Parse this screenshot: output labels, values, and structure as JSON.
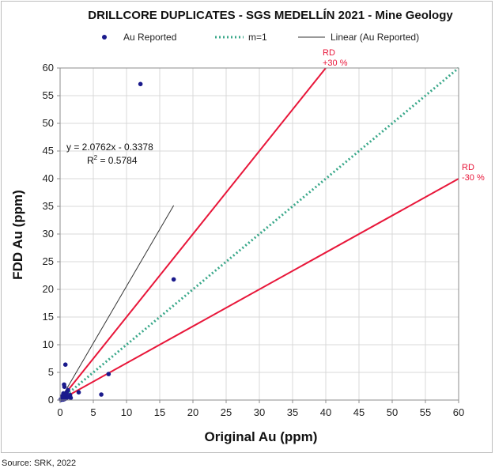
{
  "chart_data": {
    "type": "scatter",
    "title": "DRILLCORE DUPLICATES - SGS MEDELLÍN 2021 - Mine Geology",
    "xlabel": "Original Au (ppm)",
    "ylabel": "FDD  Au (ppm)",
    "xlim": [
      0,
      60
    ],
    "ylim": [
      0,
      60
    ],
    "x_ticks": [
      0,
      5,
      10,
      15,
      20,
      25,
      30,
      35,
      40,
      45,
      50,
      55,
      60
    ],
    "y_ticks": [
      0,
      5,
      10,
      15,
      20,
      25,
      30,
      35,
      40,
      45,
      50,
      55,
      60
    ],
    "grid": true,
    "legend_position": "top",
    "legend": [
      {
        "label": "Au Reported",
        "style": "marker",
        "color": "#1a1a8c"
      },
      {
        "label": "m=1",
        "style": "dotted",
        "color": "#3aa88a"
      },
      {
        "label": "Linear (Au Reported)",
        "style": "solid",
        "color": "#333333"
      }
    ],
    "series": [
      {
        "name": "Au Reported",
        "color": "#1a1a8c",
        "points": [
          [
            0.1,
            0.1
          ],
          [
            0.15,
            0.2
          ],
          [
            0.2,
            0.05
          ],
          [
            0.25,
            0.3
          ],
          [
            0.3,
            0.15
          ],
          [
            0.35,
            0.4
          ],
          [
            0.4,
            0.25
          ],
          [
            0.45,
            0.5
          ],
          [
            0.5,
            0.1
          ],
          [
            0.55,
            0.35
          ],
          [
            0.6,
            0.6
          ],
          [
            0.7,
            0.2
          ],
          [
            0.75,
            0.8
          ],
          [
            0.8,
            0.45
          ],
          [
            0.85,
            1.1
          ],
          [
            0.9,
            0.3
          ],
          [
            1.0,
            1.4
          ],
          [
            1.1,
            0.5
          ],
          [
            1.2,
            1.8
          ],
          [
            1.3,
            0.7
          ],
          [
            1.5,
            0.9
          ],
          [
            0.6,
            2.8
          ],
          [
            0.65,
            2.4
          ],
          [
            0.8,
            6.4
          ],
          [
            2.8,
            1.4
          ],
          [
            6.2,
            1.0
          ],
          [
            7.3,
            4.7
          ],
          [
            12.1,
            57.1
          ],
          [
            17.1,
            21.8
          ],
          [
            1.6,
            0.4
          ],
          [
            0.3,
            0.7
          ],
          [
            0.5,
            1.2
          ]
        ]
      }
    ],
    "reference_lines": [
      {
        "name": "m=1",
        "slope": 1,
        "color": "#3aa88a",
        "style": "dotted"
      },
      {
        "name": "RD +30 %",
        "slope": 1.5,
        "color": "#e8173a",
        "style": "solid",
        "label_lines": [
          "RD",
          "+30 %"
        ]
      },
      {
        "name": "RD -30 %",
        "slope": 0.6667,
        "color": "#e8173a",
        "style": "solid",
        "label_lines": [
          "RD",
          "-30 %"
        ]
      }
    ],
    "trendline": {
      "name": "Linear (Au Reported)",
      "slope": 2.0762,
      "intercept": -0.3378,
      "x_range": [
        0,
        17.1
      ],
      "color": "#333333",
      "equation_text": "y = 2.0762x - 0.3378",
      "r2_prefix": "R",
      "r2_superscript": "2",
      "r2_value_text": " = 0.5784"
    }
  },
  "source_note": "Source: SRK, 2022"
}
